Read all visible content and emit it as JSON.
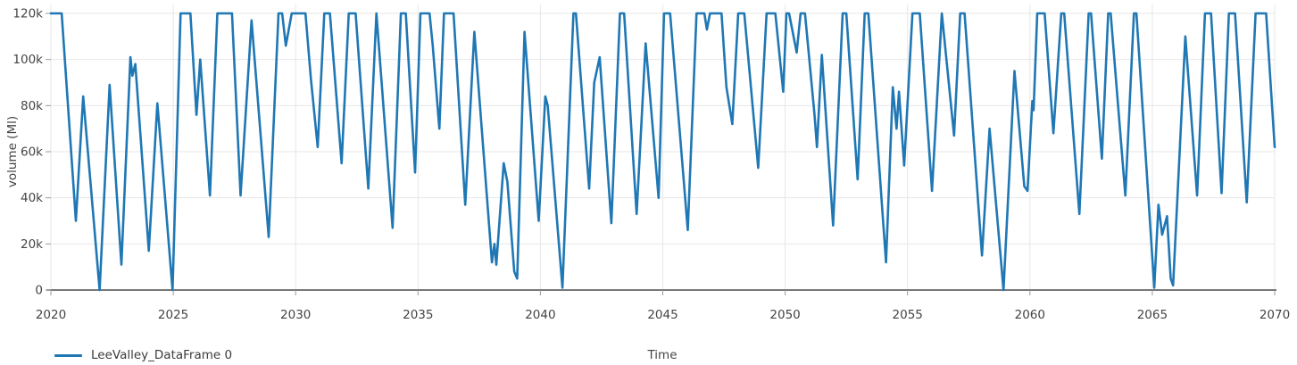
{
  "colors": {
    "series_blue": "#1f77b4",
    "axis_line": "#4a4a4a",
    "tick_mark": "#999999",
    "tick_text": "#444444",
    "grid": "#e7e7e7",
    "background": "#ffffff"
  },
  "chart_data": {
    "type": "line",
    "title": "",
    "xlabel": "Time",
    "ylabel": "volume (Ml)",
    "xlim": [
      2020,
      2070
    ],
    "ylim": [
      0,
      120000
    ],
    "grid": true,
    "legend_position": "bottom-left",
    "x_ticks": [
      2020,
      2025,
      2030,
      2035,
      2040,
      2045,
      2050,
      2055,
      2060,
      2065,
      2070
    ],
    "x_tick_labels": [
      "2020",
      "2025",
      "2030",
      "2035",
      "2040",
      "2045",
      "2050",
      "2055",
      "2060",
      "2065",
      "2070"
    ],
    "y_ticks": [
      0,
      20000,
      40000,
      60000,
      80000,
      100000,
      120000
    ],
    "y_tick_labels": [
      "0",
      "20k",
      "40k",
      "60k",
      "80k",
      "100k",
      "120k"
    ],
    "series": [
      {
        "name": "LeeValley_DataFrame 0",
        "color": "#1f77b4",
        "units": "Ml",
        "points": [
          [
            2020.0,
            120000
          ],
          [
            2020.44,
            120000
          ],
          [
            2021.02,
            30000
          ],
          [
            2021.32,
            84000
          ],
          [
            2021.99,
            0
          ],
          [
            2022.4,
            89000
          ],
          [
            2022.88,
            11000
          ],
          [
            2023.25,
            101000
          ],
          [
            2023.33,
            93000
          ],
          [
            2023.45,
            98000
          ],
          [
            2024.0,
            17000
          ],
          [
            2024.35,
            81000
          ],
          [
            2024.97,
            0
          ],
          [
            2025.3,
            120000
          ],
          [
            2025.7,
            120000
          ],
          [
            2025.95,
            76000
          ],
          [
            2026.1,
            100000
          ],
          [
            2026.5,
            41000
          ],
          [
            2026.8,
            120000
          ],
          [
            2027.4,
            120000
          ],
          [
            2027.75,
            41000
          ],
          [
            2028.2,
            117000
          ],
          [
            2028.9,
            23000
          ],
          [
            2029.3,
            120000
          ],
          [
            2029.45,
            120000
          ],
          [
            2029.6,
            106000
          ],
          [
            2029.84,
            120000
          ],
          [
            2030.4,
            120000
          ],
          [
            2030.62,
            92000
          ],
          [
            2030.9,
            62000
          ],
          [
            2031.17,
            120000
          ],
          [
            2031.4,
            120000
          ],
          [
            2031.88,
            55000
          ],
          [
            2032.17,
            120000
          ],
          [
            2032.45,
            120000
          ],
          [
            2032.97,
            44000
          ],
          [
            2033.3,
            120000
          ],
          [
            2033.96,
            27000
          ],
          [
            2034.3,
            120000
          ],
          [
            2034.5,
            120000
          ],
          [
            2034.88,
            51000
          ],
          [
            2035.1,
            120000
          ],
          [
            2035.47,
            120000
          ],
          [
            2035.6,
            106000
          ],
          [
            2035.87,
            70000
          ],
          [
            2036.06,
            120000
          ],
          [
            2036.45,
            120000
          ],
          [
            2036.93,
            37000
          ],
          [
            2037.3,
            112000
          ],
          [
            2038.02,
            12000
          ],
          [
            2038.12,
            20000
          ],
          [
            2038.2,
            11000
          ],
          [
            2038.5,
            55000
          ],
          [
            2038.65,
            47000
          ],
          [
            2038.93,
            8000
          ],
          [
            2039.05,
            5000
          ],
          [
            2039.35,
            112000
          ],
          [
            2039.93,
            30000
          ],
          [
            2040.2,
            84000
          ],
          [
            2040.3,
            80000
          ],
          [
            2040.9,
            1000
          ],
          [
            2041.35,
            120000
          ],
          [
            2041.45,
            120000
          ],
          [
            2041.99,
            44000
          ],
          [
            2042.2,
            90000
          ],
          [
            2042.42,
            101000
          ],
          [
            2042.9,
            29000
          ],
          [
            2043.25,
            120000
          ],
          [
            2043.42,
            120000
          ],
          [
            2043.93,
            33000
          ],
          [
            2044.3,
            107000
          ],
          [
            2044.83,
            40000
          ],
          [
            2045.05,
            120000
          ],
          [
            2045.3,
            120000
          ],
          [
            2046.02,
            26000
          ],
          [
            2046.38,
            120000
          ],
          [
            2046.7,
            120000
          ],
          [
            2046.8,
            113000
          ],
          [
            2046.93,
            120000
          ],
          [
            2047.4,
            120000
          ],
          [
            2047.6,
            88000
          ],
          [
            2047.84,
            72000
          ],
          [
            2048.08,
            120000
          ],
          [
            2048.33,
            120000
          ],
          [
            2048.9,
            53000
          ],
          [
            2049.24,
            120000
          ],
          [
            2049.6,
            120000
          ],
          [
            2049.92,
            86000
          ],
          [
            2050.05,
            120000
          ],
          [
            2050.16,
            120000
          ],
          [
            2050.47,
            103000
          ],
          [
            2050.63,
            120000
          ],
          [
            2050.81,
            120000
          ],
          [
            2051.2,
            76000
          ],
          [
            2051.3,
            62000
          ],
          [
            2051.5,
            102000
          ],
          [
            2051.96,
            28000
          ],
          [
            2052.35,
            120000
          ],
          [
            2052.5,
            120000
          ],
          [
            2052.96,
            48000
          ],
          [
            2053.25,
            120000
          ],
          [
            2053.4,
            120000
          ],
          [
            2054.12,
            12000
          ],
          [
            2054.4,
            88000
          ],
          [
            2054.55,
            70000
          ],
          [
            2054.65,
            86000
          ],
          [
            2054.86,
            54000
          ],
          [
            2055.2,
            120000
          ],
          [
            2055.5,
            120000
          ],
          [
            2056.0,
            43000
          ],
          [
            2056.4,
            120000
          ],
          [
            2056.9,
            67000
          ],
          [
            2057.15,
            120000
          ],
          [
            2057.33,
            120000
          ],
          [
            2058.04,
            15000
          ],
          [
            2058.35,
            70000
          ],
          [
            2058.92,
            0
          ],
          [
            2059.37,
            95000
          ],
          [
            2059.77,
            45000
          ],
          [
            2059.9,
            43000
          ],
          [
            2060.1,
            82000
          ],
          [
            2060.15,
            78000
          ],
          [
            2060.3,
            120000
          ],
          [
            2060.6,
            120000
          ],
          [
            2060.96,
            68000
          ],
          [
            2061.28,
            120000
          ],
          [
            2061.4,
            120000
          ],
          [
            2062.02,
            33000
          ],
          [
            2062.4,
            120000
          ],
          [
            2062.5,
            120000
          ],
          [
            2062.94,
            57000
          ],
          [
            2063.2,
            120000
          ],
          [
            2063.3,
            120000
          ],
          [
            2063.35,
            113000
          ],
          [
            2063.9,
            41000
          ],
          [
            2064.25,
            120000
          ],
          [
            2064.35,
            120000
          ],
          [
            2065.08,
            1000
          ],
          [
            2065.25,
            37000
          ],
          [
            2065.4,
            24000
          ],
          [
            2065.6,
            32000
          ],
          [
            2065.75,
            5000
          ],
          [
            2065.85,
            2000
          ],
          [
            2066.35,
            110000
          ],
          [
            2066.83,
            41000
          ],
          [
            2067.15,
            120000
          ],
          [
            2067.4,
            120000
          ],
          [
            2067.83,
            42000
          ],
          [
            2068.13,
            120000
          ],
          [
            2068.38,
            120000
          ],
          [
            2068.86,
            38000
          ],
          [
            2069.22,
            120000
          ],
          [
            2069.65,
            120000
          ],
          [
            2070.0,
            62000
          ]
        ]
      }
    ]
  }
}
